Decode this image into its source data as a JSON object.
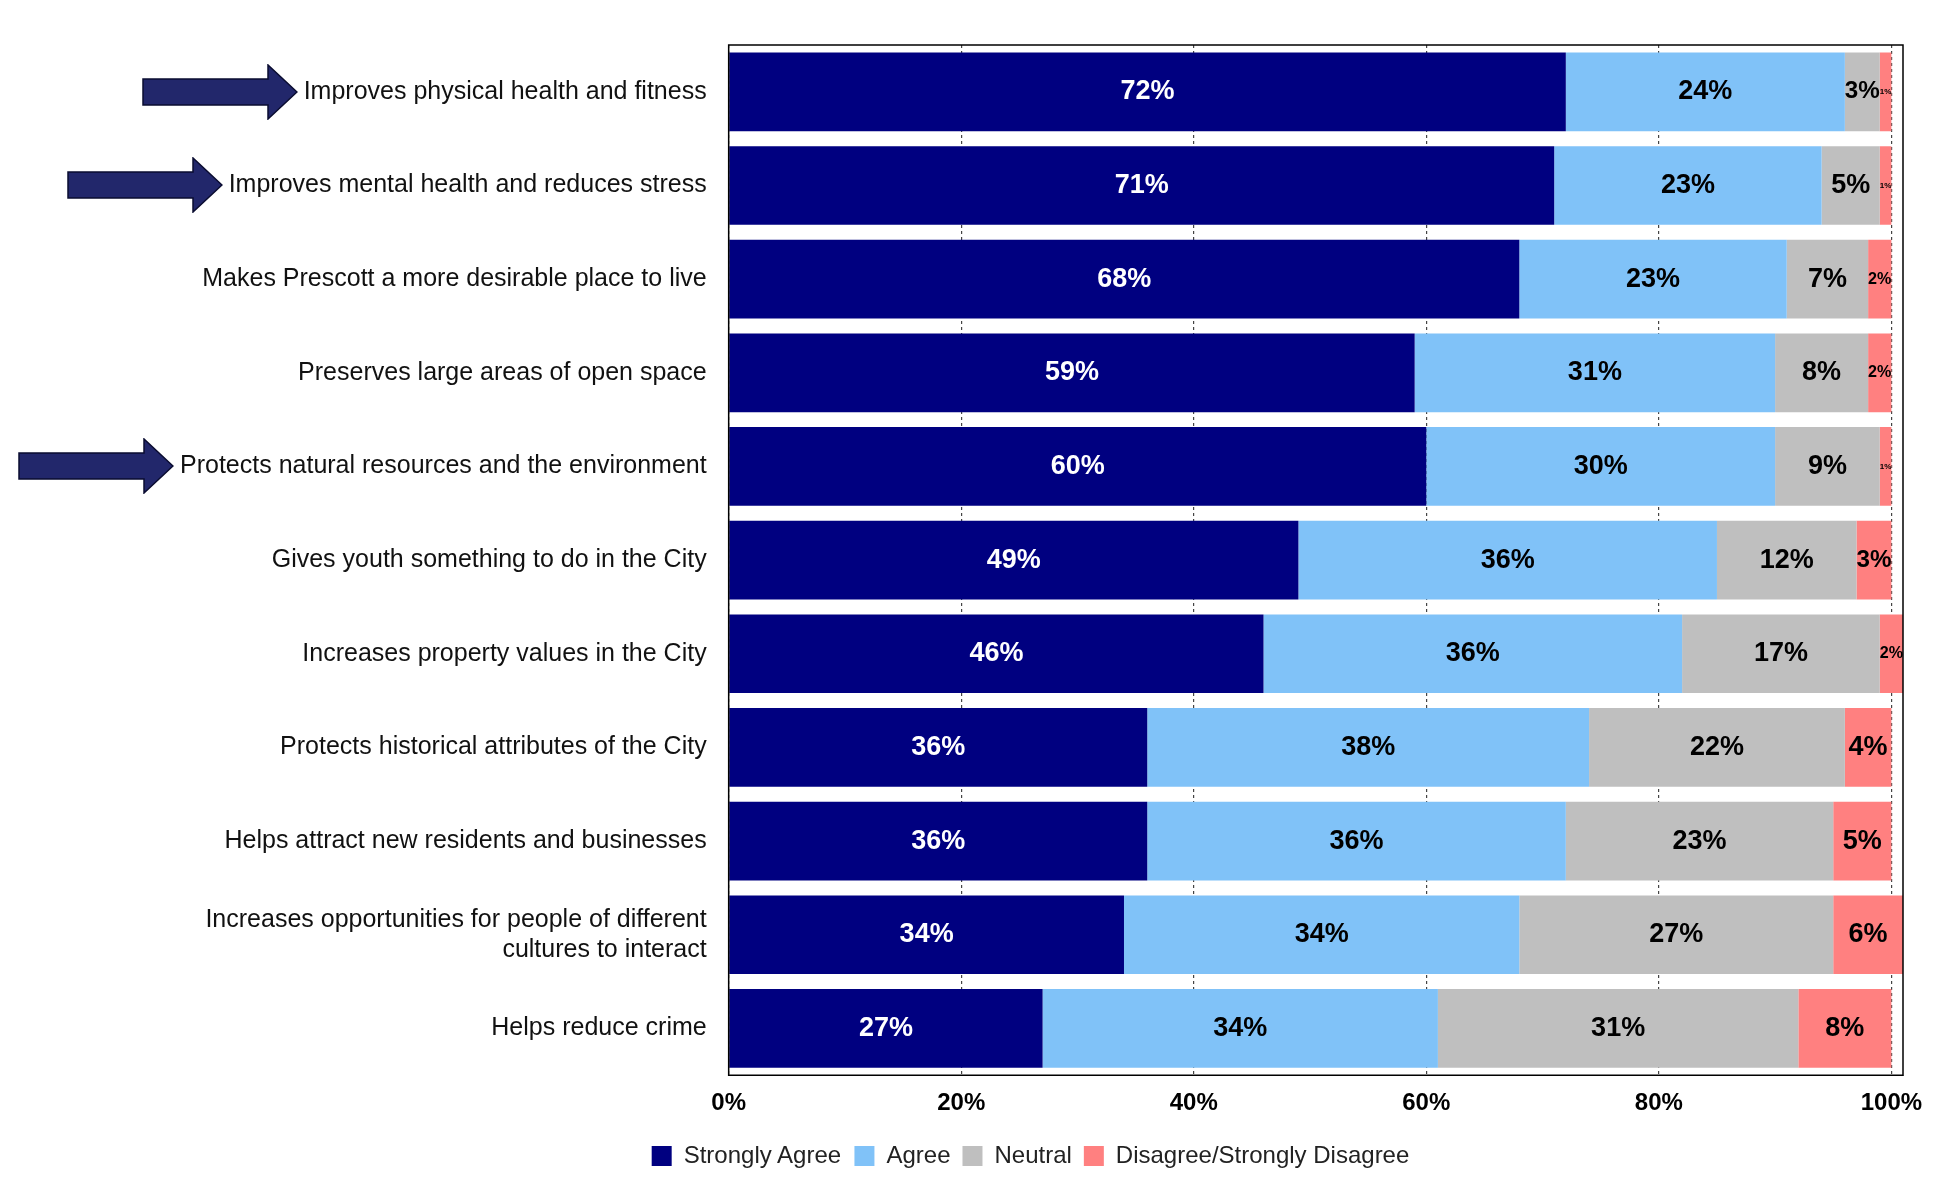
{
  "chart_data": {
    "type": "bar",
    "orientation": "horizontal",
    "stacked": true,
    "grid": "x",
    "legend": "bottom",
    "categories": [
      "Improves physical health and fitness",
      "Improves mental health and reduces stress",
      "Makes Prescott a more desirable place to live",
      "Preserves large areas of open space",
      "Protects natural resources and the environment",
      "Gives youth something to do in the City",
      "Increases property values in the City",
      "Protects historical attributes of the City",
      "Helps attract new residents and businesses",
      "Increases opportunities for people of different cultures to interact",
      "Helps reduce crime"
    ],
    "series": [
      {
        "name": "Strongly Agree",
        "color": "#000080",
        "values": [
          72,
          71,
          68,
          59,
          60,
          49,
          46,
          36,
          36,
          34,
          27
        ],
        "value_labels": [
          "72%",
          "71%",
          "68%",
          "59%",
          "60%",
          "49%",
          "46%",
          "36%",
          "36%",
          "34%",
          "27%"
        ]
      },
      {
        "name": "Agree",
        "color": "#80c2f8",
        "values": [
          24,
          23,
          23,
          31,
          30,
          36,
          36,
          38,
          36,
          34,
          34
        ],
        "value_labels": [
          "24%",
          "23%",
          "23%",
          "31%",
          "30%",
          "36%",
          "36%",
          "38%",
          "36%",
          "34%",
          "34%"
        ]
      },
      {
        "name": "Neutral",
        "color": "#bfbfbf",
        "values": [
          3,
          5,
          7,
          8,
          9,
          12,
          17,
          22,
          23,
          27,
          31
        ],
        "value_labels": [
          "3%",
          "5%",
          "7%",
          "8%",
          "9%",
          "12%",
          "17%",
          "22%",
          "23%",
          "27%",
          "31%"
        ]
      },
      {
        "name": "Disagree/Strongly Disagree",
        "color": "#ff8080",
        "values": [
          1,
          1,
          2,
          2,
          1,
          3,
          2,
          4,
          5,
          6,
          8
        ],
        "value_labels": [
          "1%",
          "1%",
          "2%",
          "2%",
          "1%",
          "3%",
          "2%",
          "4%",
          "5%",
          "6%",
          "8%"
        ]
      }
    ],
    "xlim": [
      0,
      101
    ],
    "xticks": [
      {
        "value": 0,
        "label": "0%"
      },
      {
        "value": 20,
        "label": "20%"
      },
      {
        "value": 40,
        "label": "40%"
      },
      {
        "value": 60,
        "label": "60%"
      },
      {
        "value": 80,
        "label": "80%"
      },
      {
        "value": 100,
        "label": "100%"
      }
    ]
  }
}
